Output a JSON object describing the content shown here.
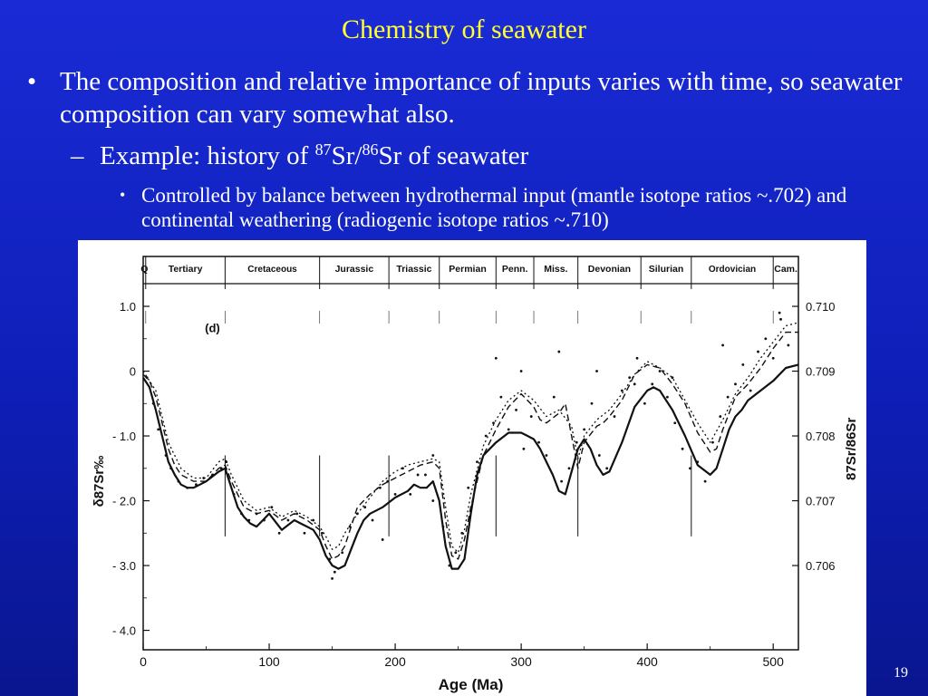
{
  "slide": {
    "title": "Chemistry of seawater",
    "bullet1": "The composition and relative importance of inputs varies with time, so seawater composition can vary somewhat also.",
    "bullet2_prefix": "Example: history of ",
    "bullet2_sup1": "87",
    "bullet2_mid": "Sr/",
    "bullet2_sup2": "86",
    "bullet2_suffix": "Sr of seawater",
    "bullet3": "Controlled by balance between hydrothermal input (mantle isotope ratios ~.702) and continental weathering (radiogenic isotope ratios ~.710)",
    "page_number": "19",
    "bullet_mark": "•",
    "dash_mark": "–"
  },
  "colors": {
    "title": "#ffff33",
    "text": "#ffffff",
    "background_top": "#1a2bd6",
    "background_bottom": "#0a168f"
  },
  "chart_data": {
    "type": "line",
    "xlabel": "Age (Ma)",
    "ylabel_left": "δ87Sr‰",
    "ylabel_right": "87Sr/86Sr",
    "panel_label": "(d)",
    "xlim": [
      0,
      520
    ],
    "ylim": [
      -4.3,
      1.35
    ],
    "x_ticks": [
      0,
      100,
      200,
      300,
      400,
      500
    ],
    "x_tick_labels": [
      "0",
      "100",
      "200",
      "300",
      "400",
      "500"
    ],
    "y_left_ticks": [
      1.0,
      0,
      -1.0,
      -2.0,
      -3.0,
      -4.0
    ],
    "y_left_tick_labels": [
      "1.0",
      "0",
      "- 1.0",
      "- 2.0",
      "- 3.0",
      "- 4.0"
    ],
    "y_right_ticks": [
      0.71,
      0.709,
      0.708,
      0.707,
      0.706
    ],
    "y_right_tick_labels": [
      "0.710",
      "0.709",
      "0.708",
      "0.707",
      "0.706"
    ],
    "periods": [
      {
        "name": "Q",
        "start": 0,
        "end": 2
      },
      {
        "name": "Tertiary",
        "start": 2,
        "end": 65
      },
      {
        "name": "Cretaceous",
        "start": 65,
        "end": 140
      },
      {
        "name": "Jurassic",
        "start": 140,
        "end": 195
      },
      {
        "name": "Triassic",
        "start": 195,
        "end": 235
      },
      {
        "name": "Permian",
        "start": 235,
        "end": 280
      },
      {
        "name": "Penn.",
        "start": 280,
        "end": 310
      },
      {
        "name": "Miss.",
        "start": 310,
        "end": 345
      },
      {
        "name": "Devonian",
        "start": 345,
        "end": 395
      },
      {
        "name": "Silurian",
        "start": 395,
        "end": 435
      },
      {
        "name": "Ordovician",
        "start": 435,
        "end": 500
      },
      {
        "name": "Cam.",
        "start": 500,
        "end": 520
      }
    ],
    "series": [
      {
        "style": "solid",
        "x": [
          0,
          5,
          10,
          15,
          20,
          25,
          30,
          35,
          40,
          45,
          50,
          60,
          65,
          70,
          75,
          80,
          85,
          90,
          95,
          100,
          110,
          120,
          125,
          130,
          135,
          140,
          145,
          150,
          155,
          160,
          165,
          170,
          175,
          180,
          185,
          190,
          200,
          210,
          215,
          220,
          225,
          230,
          235,
          240,
          245,
          250,
          255,
          260,
          265,
          270,
          280,
          290,
          300,
          305,
          310,
          315,
          320,
          325,
          330,
          335,
          340,
          345,
          350,
          355,
          360,
          365,
          370,
          380,
          390,
          400,
          405,
          410,
          415,
          420,
          430,
          440,
          450,
          455,
          460,
          465,
          470,
          475,
          480,
          490,
          500,
          510,
          520
        ],
        "values": [
          -0.1,
          -0.25,
          -0.6,
          -1.0,
          -1.4,
          -1.6,
          -1.75,
          -1.8,
          -1.8,
          -1.75,
          -1.7,
          -1.55,
          -1.5,
          -1.8,
          -2.1,
          -2.25,
          -2.35,
          -2.4,
          -2.3,
          -2.2,
          -2.45,
          -2.3,
          -2.35,
          -2.4,
          -2.45,
          -2.6,
          -2.85,
          -3.0,
          -3.05,
          -3.0,
          -2.75,
          -2.5,
          -2.3,
          -2.2,
          -2.15,
          -2.1,
          -1.95,
          -1.85,
          -1.75,
          -1.8,
          -1.8,
          -1.7,
          -2.0,
          -2.7,
          -3.05,
          -3.05,
          -2.9,
          -2.2,
          -1.6,
          -1.3,
          -1.1,
          -0.95,
          -0.95,
          -1.0,
          -1.05,
          -1.2,
          -1.4,
          -1.6,
          -1.85,
          -1.9,
          -1.55,
          -1.2,
          -1.05,
          -1.2,
          -1.45,
          -1.6,
          -1.55,
          -1.1,
          -0.55,
          -0.3,
          -0.25,
          -0.3,
          -0.45,
          -0.6,
          -1.0,
          -1.45,
          -1.6,
          -1.5,
          -1.2,
          -0.9,
          -0.7,
          -0.6,
          -0.45,
          -0.3,
          -0.15,
          0.05,
          0.1
        ]
      },
      {
        "style": "dashed",
        "x": [
          0,
          5,
          10,
          15,
          20,
          25,
          30,
          40,
          50,
          60,
          65,
          70,
          80,
          90,
          100,
          110,
          120,
          130,
          140,
          145,
          150,
          155,
          160,
          165,
          170,
          180,
          190,
          200,
          210,
          220,
          230,
          235,
          240,
          245,
          250,
          255,
          260,
          270,
          280,
          290,
          300,
          310,
          315,
          320,
          330,
          335,
          340,
          345,
          350,
          360,
          365,
          370,
          380,
          390,
          400,
          410,
          420,
          430,
          440,
          450,
          455,
          460,
          470,
          480,
          490,
          500,
          510,
          520
        ],
        "values": [
          -0.05,
          -0.15,
          -0.4,
          -0.8,
          -1.2,
          -1.45,
          -1.6,
          -1.7,
          -1.7,
          -1.5,
          -1.45,
          -1.7,
          -2.1,
          -2.2,
          -2.15,
          -2.3,
          -2.2,
          -2.3,
          -2.45,
          -2.7,
          -2.9,
          -2.85,
          -2.7,
          -2.4,
          -2.1,
          -1.9,
          -1.75,
          -1.65,
          -1.55,
          -1.45,
          -1.4,
          -1.5,
          -2.3,
          -2.85,
          -2.9,
          -2.6,
          -2.1,
          -1.3,
          -0.9,
          -0.55,
          -0.35,
          -0.55,
          -0.75,
          -0.8,
          -0.65,
          -0.5,
          -1.0,
          -1.5,
          -1.1,
          -0.85,
          -0.8,
          -0.7,
          -0.45,
          -0.05,
          0.1,
          0.05,
          -0.2,
          -0.5,
          -0.95,
          -1.25,
          -1.2,
          -0.9,
          -0.4,
          -0.2,
          0.05,
          0.35,
          0.6,
          0.6
        ]
      },
      {
        "style": "dotted",
        "x": [
          0,
          10,
          20,
          30,
          40,
          50,
          60,
          65,
          70,
          80,
          90,
          100,
          110,
          120,
          130,
          140,
          145,
          150,
          155,
          160,
          170,
          180,
          190,
          200,
          210,
          220,
          230,
          235,
          240,
          245,
          250,
          255,
          260,
          270,
          280,
          290,
          300,
          310,
          320,
          330,
          340,
          345,
          350,
          360,
          370,
          380,
          390,
          400,
          410,
          420,
          430,
          440,
          450,
          460,
          470,
          480,
          490,
          500,
          510,
          520
        ],
        "values": [
          0.0,
          -0.3,
          -1.1,
          -1.5,
          -1.65,
          -1.65,
          -1.4,
          -1.35,
          -1.6,
          -2.0,
          -2.15,
          -2.1,
          -2.25,
          -2.15,
          -2.25,
          -2.4,
          -2.55,
          -2.75,
          -2.7,
          -2.5,
          -2.2,
          -1.95,
          -1.7,
          -1.55,
          -1.45,
          -1.4,
          -1.35,
          -1.4,
          -2.1,
          -2.7,
          -2.8,
          -2.45,
          -1.9,
          -1.15,
          -0.75,
          -0.45,
          -0.3,
          -0.45,
          -0.7,
          -0.6,
          -0.85,
          -1.35,
          -1.0,
          -0.75,
          -0.6,
          -0.35,
          -0.05,
          0.15,
          0.05,
          -0.1,
          -0.45,
          -0.8,
          -1.1,
          -0.75,
          -0.35,
          -0.1,
          0.2,
          0.45,
          0.7,
          0.75
        ]
      }
    ],
    "scatter": {
      "x": [
        3,
        8,
        12,
        18,
        22,
        28,
        35,
        42,
        48,
        55,
        62,
        66,
        72,
        78,
        84,
        90,
        96,
        102,
        108,
        115,
        122,
        128,
        135,
        142,
        148,
        152,
        158,
        164,
        170,
        176,
        182,
        188,
        194,
        200,
        206,
        212,
        218,
        224,
        230,
        238,
        243,
        248,
        253,
        258,
        265,
        272,
        278,
        284,
        290,
        296,
        302,
        308,
        314,
        320,
        326,
        332,
        338,
        344,
        350,
        356,
        362,
        368,
        374,
        380,
        386,
        392,
        398,
        404,
        410,
        416,
        422,
        428,
        434,
        440,
        446,
        452,
        458,
        464,
        470,
        476,
        482,
        488,
        494,
        500,
        506,
        512,
        150,
        190,
        230,
        280,
        300,
        330,
        360,
        390,
        420,
        460,
        505
      ],
      "values": [
        -0.1,
        -0.5,
        -0.9,
        -1.3,
        -1.5,
        -1.7,
        -1.8,
        -1.75,
        -1.65,
        -1.6,
        -1.5,
        -1.4,
        -1.9,
        -2.2,
        -2.3,
        -2.2,
        -2.3,
        -2.1,
        -2.5,
        -2.3,
        -2.2,
        -2.5,
        -2.3,
        -2.5,
        -2.9,
        -3.1,
        -2.8,
        -2.4,
        -2.2,
        -2.1,
        -2.3,
        -1.8,
        -1.7,
        -1.9,
        -1.5,
        -1.9,
        -1.6,
        -1.6,
        -1.3,
        -2.4,
        -3.0,
        -2.8,
        -2.5,
        -1.8,
        -1.4,
        -1.0,
        -0.8,
        -0.4,
        -0.9,
        -0.6,
        -1.2,
        -0.7,
        -1.1,
        -1.3,
        -0.4,
        -1.7,
        -1.5,
        -1.1,
        -0.9,
        -0.5,
        -1.3,
        -1.5,
        -0.7,
        -0.3,
        -0.1,
        0.2,
        -0.5,
        -0.2,
        0.0,
        -0.4,
        -0.8,
        -1.2,
        -1.5,
        -1.4,
        -1.7,
        -1.1,
        -0.7,
        -0.4,
        -0.2,
        0.1,
        -0.3,
        0.3,
        0.5,
        0.2,
        0.8,
        0.4,
        -3.2,
        -2.6,
        -2.0,
        0.2,
        0.0,
        0.3,
        0.0,
        -0.2,
        -0.1,
        0.4,
        0.9
      ]
    }
  }
}
